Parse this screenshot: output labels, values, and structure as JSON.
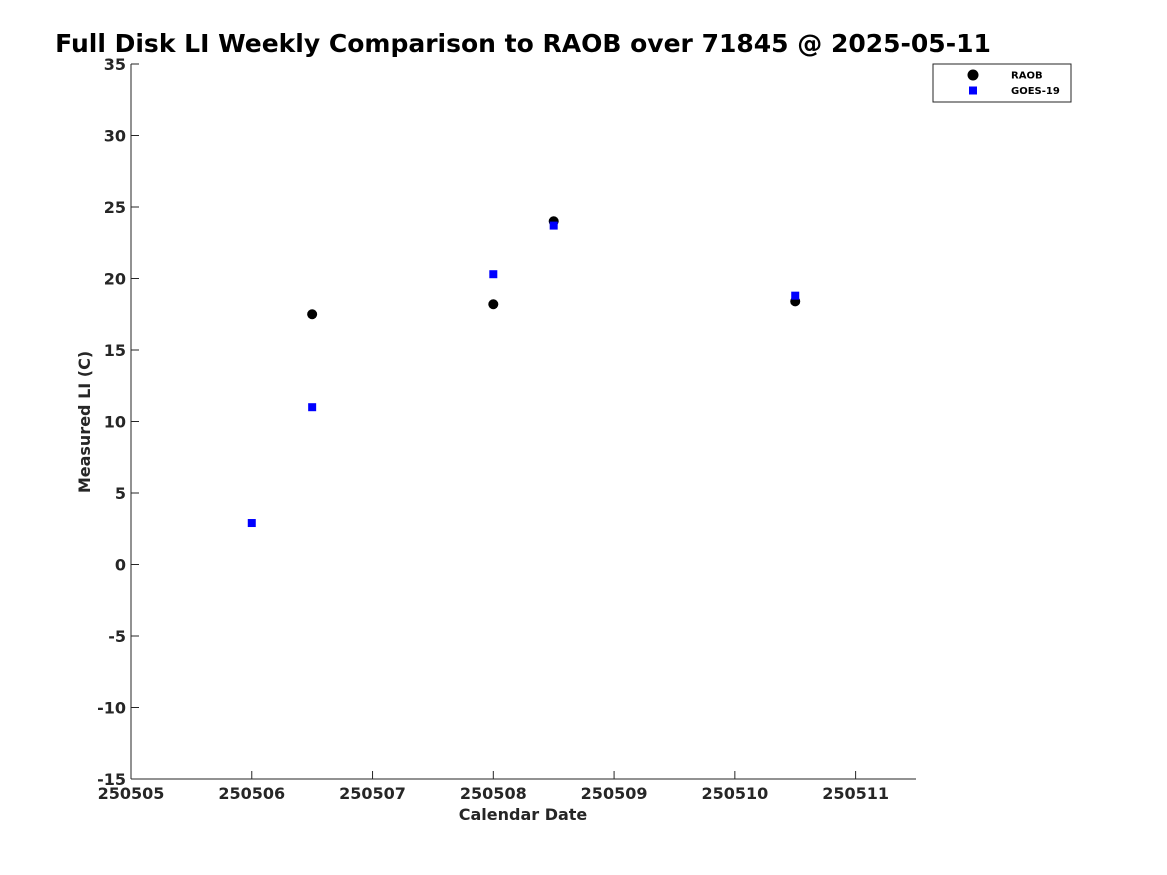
{
  "chart_data": {
    "type": "scatter",
    "title": "Full Disk LI Weekly Comparison to RAOB over 71845 @ 2025-05-11",
    "xlabel": "Calendar Date",
    "ylabel": "Measured LI (C)",
    "xlim": [
      250505,
      250511.5
    ],
    "ylim": [
      -15,
      35
    ],
    "xticks": [
      250505,
      250506,
      250507,
      250508,
      250509,
      250510,
      250511
    ],
    "xtick_labels": [
      "250505",
      "250506",
      "250507",
      "250508",
      "250509",
      "250510",
      "250511"
    ],
    "yticks": [
      -15,
      -10,
      -5,
      0,
      5,
      10,
      15,
      20,
      25,
      30,
      35
    ],
    "ytick_labels": [
      "-15",
      "-10",
      "-5",
      "0",
      "5",
      "10",
      "15",
      "20",
      "25",
      "30",
      "35"
    ],
    "grid": false,
    "legend_position": "top-right",
    "series": [
      {
        "name": "RAOB",
        "marker": "circle",
        "color": "#000000",
        "points": [
          {
            "x": 250506.5,
            "y": 17.5
          },
          {
            "x": 250508.0,
            "y": 18.2
          },
          {
            "x": 250508.5,
            "y": 24.0
          },
          {
            "x": 250510.5,
            "y": 18.4
          }
        ]
      },
      {
        "name": "GOES-19",
        "marker": "square",
        "color": "#0000ff",
        "points": [
          {
            "x": 250506.0,
            "y": 2.9
          },
          {
            "x": 250506.5,
            "y": 11.0
          },
          {
            "x": 250508.0,
            "y": 20.3
          },
          {
            "x": 250508.5,
            "y": 23.7
          },
          {
            "x": 250510.5,
            "y": 18.8
          }
        ]
      }
    ]
  }
}
